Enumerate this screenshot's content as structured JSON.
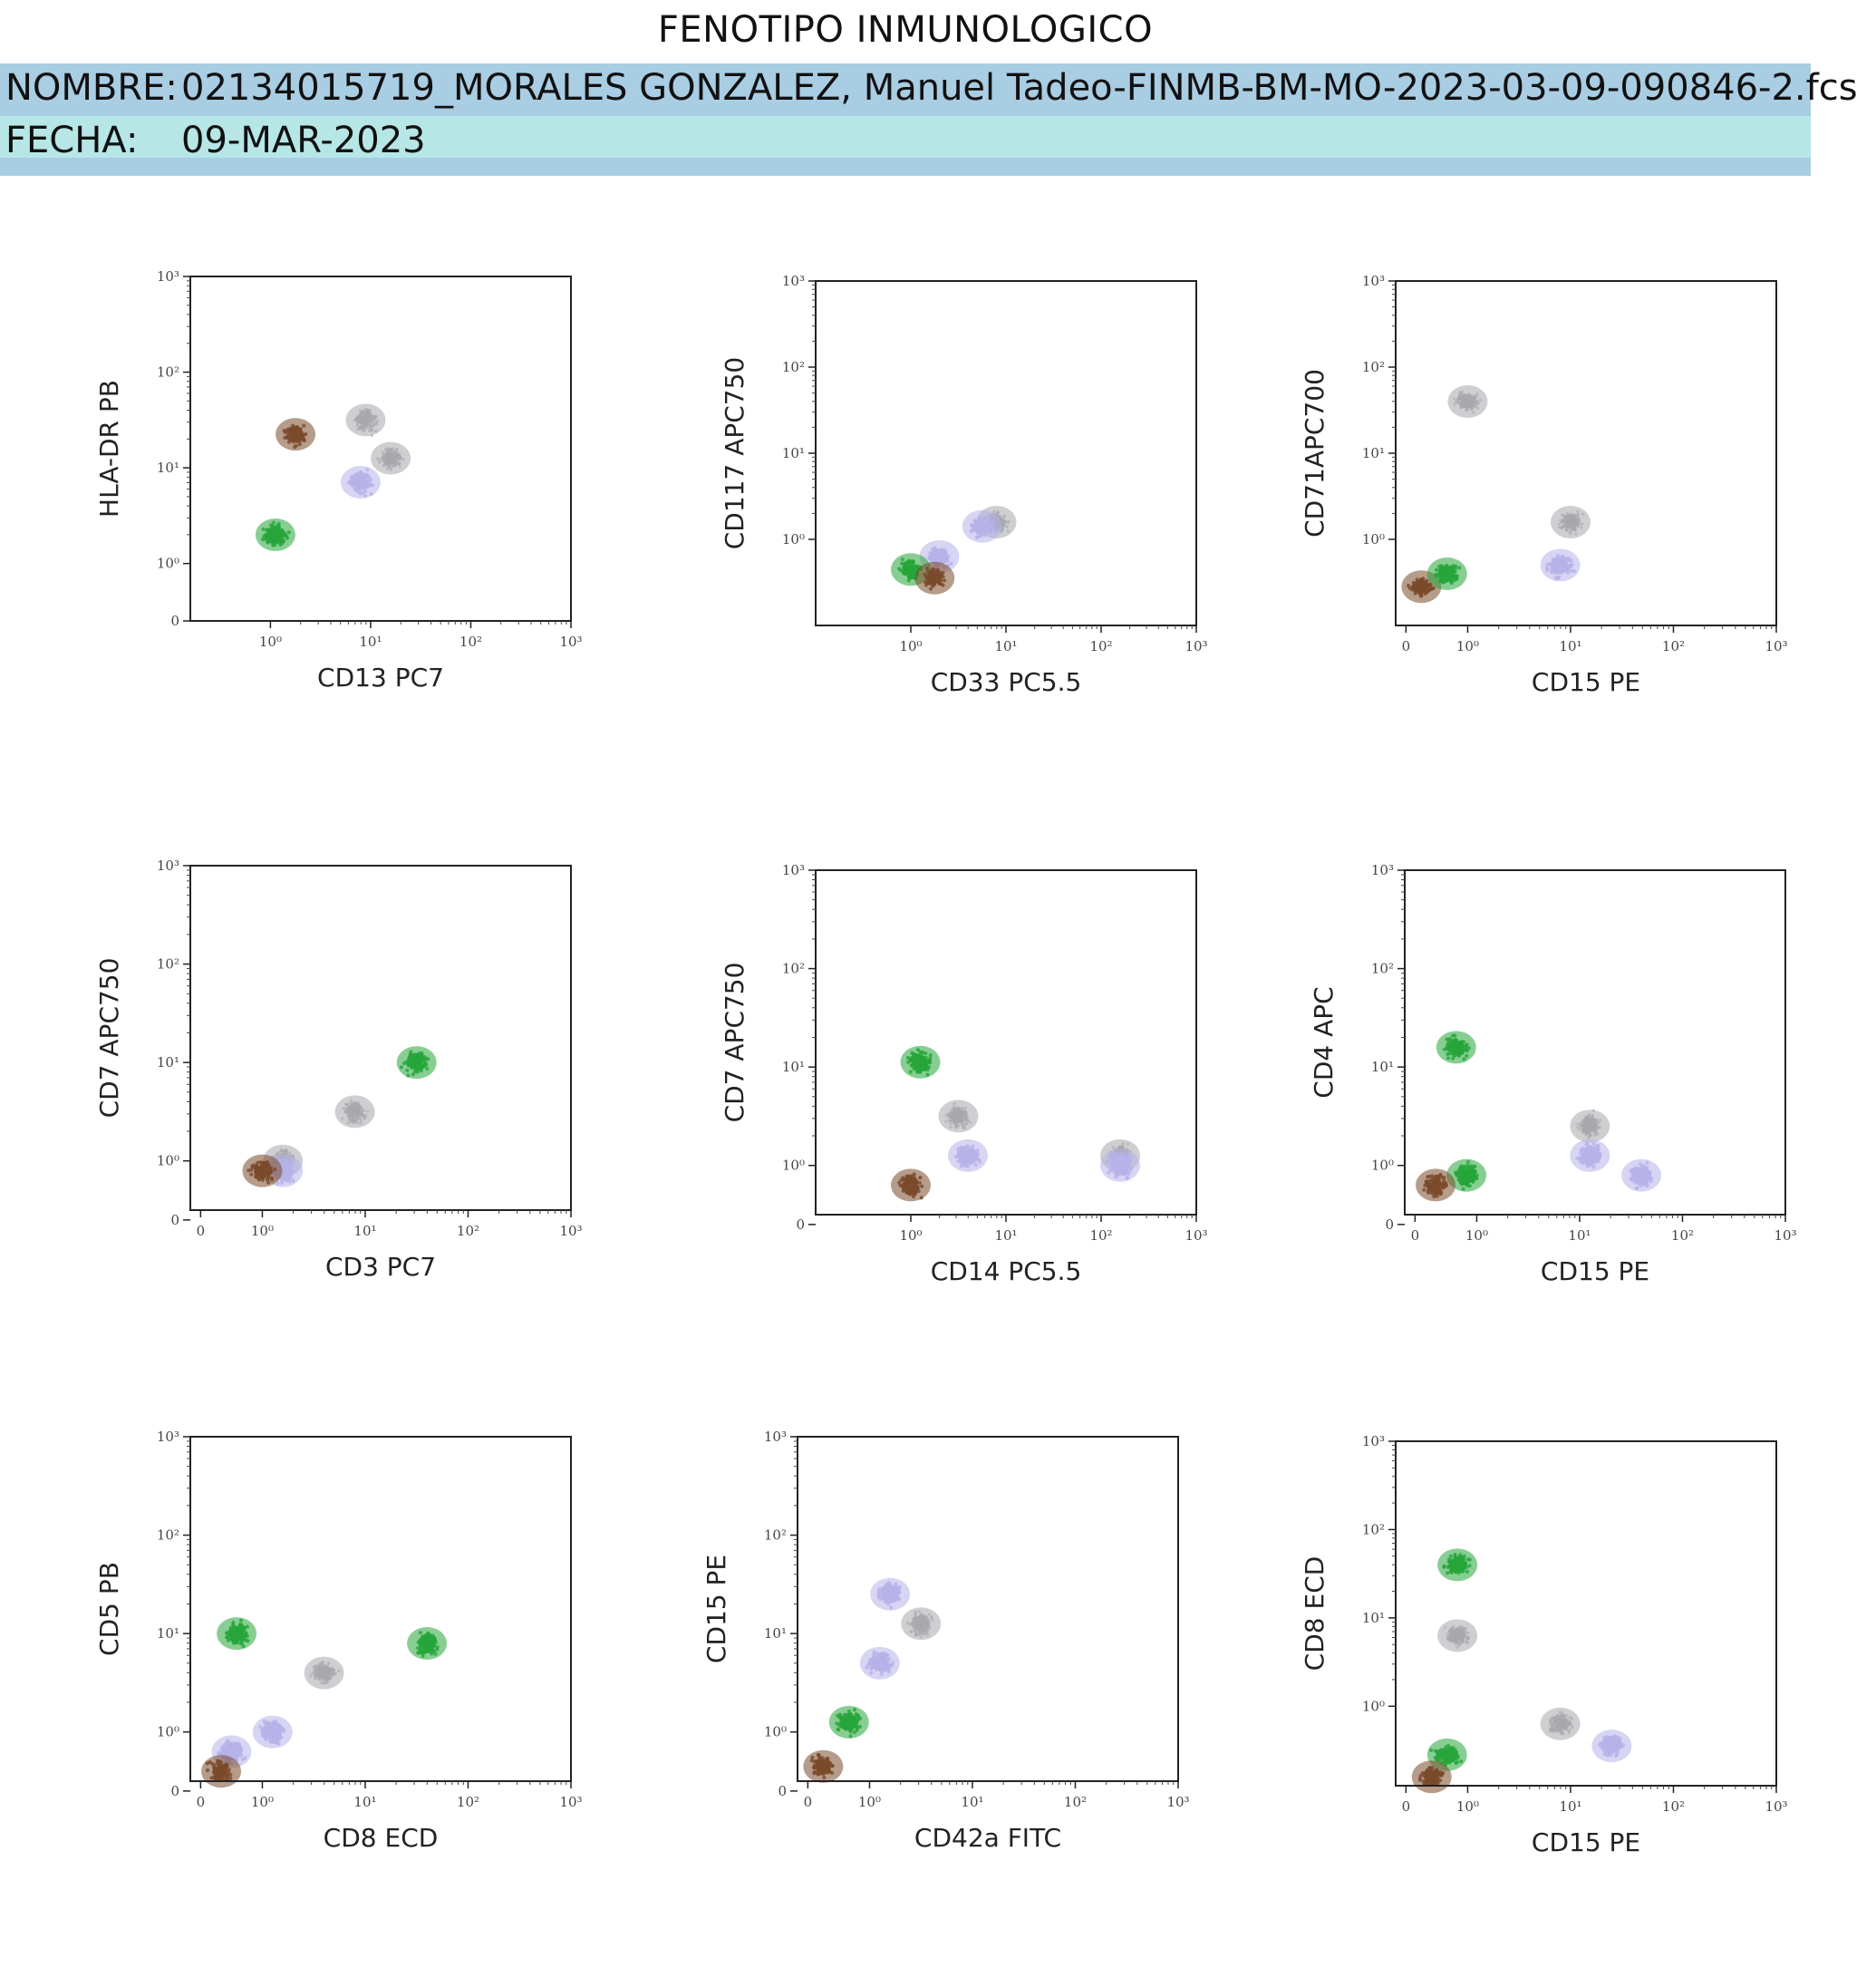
{
  "page": {
    "title": "FENOTIPO INMUNOLOGICO",
    "nombre_label": "NOMBRE:",
    "nombre_value": "02134015719_MORALES GONZALEZ, Manuel Tadeo-FINMB-BM-MO-2023-03-09-090846-2.fcs",
    "fecha_label": "FECHA:",
    "fecha_value": "09-MAR-2023"
  },
  "colors": {
    "gray": "#a8a8ad",
    "lavender": "#b6b3e9",
    "green": "#27a53a",
    "brown": "#7a4a2a",
    "header_blue": "#a9cde3",
    "header_cyan": "#b7e6e6"
  },
  "chart_data": [
    {
      "type": "scatter",
      "xlabel": "CD13 PC7",
      "ylabel": "HLA-DR PB",
      "xticks": [
        "10⁰",
        "10¹",
        "10²",
        "10³"
      ],
      "yticks": [
        "0",
        "10⁰",
        "10¹",
        "10²",
        "10³"
      ],
      "xlim": [
        -0.8,
        3
      ],
      "ylim": [
        -0.6,
        3
      ],
      "series": [
        {
          "color": "gray",
          "points": [
            [
              0.95,
              1.5
            ],
            [
              1.2,
              1.1
            ]
          ]
        },
        {
          "color": "lavender",
          "points": [
            [
              0.9,
              0.85
            ]
          ]
        },
        {
          "color": "brown",
          "points": [
            [
              0.25,
              1.35
            ]
          ]
        },
        {
          "color": "green",
          "points": [
            [
              0.05,
              0.3
            ]
          ]
        }
      ]
    },
    {
      "type": "scatter",
      "xlabel": "CD33 PC5.5",
      "ylabel": "CD117 APC750",
      "xticks": [
        "10⁰",
        "10¹",
        "10²",
        "10³"
      ],
      "yticks": [
        "10⁰",
        "10¹",
        "10²",
        "10³"
      ],
      "xlim": [
        -1,
        3
      ],
      "ylim": [
        -1,
        3
      ],
      "series": [
        {
          "color": "gray",
          "points": [
            [
              0.9,
              0.2
            ]
          ]
        },
        {
          "color": "lavender",
          "points": [
            [
              0.75,
              0.15
            ],
            [
              0.3,
              -0.2
            ]
          ]
        },
        {
          "color": "green",
          "points": [
            [
              0.0,
              -0.35
            ]
          ]
        },
        {
          "color": "brown",
          "points": [
            [
              0.25,
              -0.45
            ]
          ]
        }
      ]
    },
    {
      "type": "scatter",
      "xlabel": "CD15 PE",
      "ylabel": "CD71APC700",
      "xticks": [
        "0",
        "10⁰",
        "10¹",
        "10²",
        "10³"
      ],
      "yticks": [
        "10⁰",
        "10¹",
        "10²",
        "10³"
      ],
      "xlim": [
        -0.7,
        3
      ],
      "ylim": [
        -1,
        3
      ],
      "series": [
        {
          "color": "gray",
          "points": [
            [
              0.0,
              1.6
            ],
            [
              1.0,
              0.2
            ]
          ]
        },
        {
          "color": "lavender",
          "points": [
            [
              0.9,
              -0.3
            ]
          ]
        },
        {
          "color": "brown",
          "points": [
            [
              -0.45,
              -0.55
            ]
          ]
        },
        {
          "color": "green",
          "points": [
            [
              -0.2,
              -0.4
            ]
          ]
        }
      ]
    },
    {
      "type": "scatter",
      "xlabel": "CD3 PC7",
      "ylabel": "CD7 APC750",
      "xticks": [
        "0",
        "10⁰",
        "10¹",
        "10²",
        "10³"
      ],
      "yticks": [
        "0",
        "10⁰",
        "10¹",
        "10²",
        "10³"
      ],
      "xlim": [
        -0.7,
        3
      ],
      "ylim": [
        -0.5,
        3
      ],
      "series": [
        {
          "color": "gray",
          "points": [
            [
              0.2,
              0.0
            ],
            [
              0.9,
              0.5
            ]
          ]
        },
        {
          "color": "lavender",
          "points": [
            [
              0.2,
              -0.1
            ]
          ]
        },
        {
          "color": "brown",
          "points": [
            [
              0.0,
              -0.1
            ]
          ]
        },
        {
          "color": "green",
          "points": [
            [
              1.5,
              1.0
            ]
          ]
        }
      ]
    },
    {
      "type": "scatter",
      "xlabel": "CD14 PC5.5",
      "ylabel": "CD7 APC750",
      "xticks": [
        "10⁰",
        "10¹",
        "10²",
        "10³"
      ],
      "yticks": [
        "0",
        "10⁰",
        "10¹",
        "10²",
        "10³"
      ],
      "xlim": [
        -1,
        3
      ],
      "ylim": [
        -0.5,
        3
      ],
      "series": [
        {
          "color": "gray",
          "points": [
            [
              0.5,
              0.5
            ],
            [
              2.2,
              0.1
            ]
          ]
        },
        {
          "color": "lavender",
          "points": [
            [
              0.6,
              0.1
            ],
            [
              2.2,
              0.0
            ]
          ]
        },
        {
          "color": "green",
          "points": [
            [
              0.1,
              1.05
            ]
          ]
        },
        {
          "color": "brown",
          "points": [
            [
              0.0,
              -0.2
            ]
          ]
        }
      ]
    },
    {
      "type": "scatter",
      "xlabel": "CD15 PE",
      "ylabel": "CD4 APC",
      "xticks": [
        "0",
        "10⁰",
        "10¹",
        "10²",
        "10³"
      ],
      "yticks": [
        "0",
        "10⁰",
        "10¹",
        "10²",
        "10³"
      ],
      "xlim": [
        -0.7,
        3
      ],
      "ylim": [
        -0.5,
        3
      ],
      "series": [
        {
          "color": "gray",
          "points": [
            [
              1.1,
              0.4
            ]
          ]
        },
        {
          "color": "lavender",
          "points": [
            [
              1.1,
              0.1
            ],
            [
              1.6,
              -0.1
            ]
          ]
        },
        {
          "color": "green",
          "points": [
            [
              -0.2,
              1.2
            ],
            [
              -0.1,
              -0.1
            ]
          ]
        },
        {
          "color": "brown",
          "points": [
            [
              -0.4,
              -0.2
            ]
          ]
        }
      ]
    },
    {
      "type": "scatter",
      "xlabel": "CD8 ECD",
      "ylabel": "CD5 PB",
      "xticks": [
        "0",
        "10⁰",
        "10¹",
        "10²",
        "10³"
      ],
      "yticks": [
        "0",
        "10⁰",
        "10¹",
        "10²",
        "10³"
      ],
      "xlim": [
        -0.7,
        3
      ],
      "ylim": [
        -0.5,
        3
      ],
      "series": [
        {
          "color": "gray",
          "points": [
            [
              0.6,
              0.6
            ]
          ]
        },
        {
          "color": "lavender",
          "points": [
            [
              -0.3,
              -0.2
            ],
            [
              0.1,
              0.0
            ]
          ]
        },
        {
          "color": "green",
          "points": [
            [
              -0.25,
              1.0
            ],
            [
              1.6,
              0.9
            ]
          ]
        },
        {
          "color": "brown",
          "points": [
            [
              -0.4,
              -0.4
            ]
          ]
        }
      ]
    },
    {
      "type": "scatter",
      "xlabel": "CD42a FITC",
      "ylabel": "CD15 PE",
      "xticks": [
        "0",
        "10⁰",
        "10¹",
        "10²",
        "10³"
      ],
      "yticks": [
        "0",
        "10⁰",
        "10¹",
        "10²",
        "10³"
      ],
      "xlim": [
        -0.7,
        3
      ],
      "ylim": [
        -0.5,
        3
      ],
      "series": [
        {
          "color": "gray",
          "points": [
            [
              0.5,
              1.1
            ]
          ]
        },
        {
          "color": "lavender",
          "points": [
            [
              0.2,
              1.4
            ],
            [
              0.1,
              0.7
            ]
          ]
        },
        {
          "color": "green",
          "points": [
            [
              -0.2,
              0.1
            ]
          ]
        },
        {
          "color": "brown",
          "points": [
            [
              -0.45,
              -0.35
            ]
          ]
        }
      ]
    },
    {
      "type": "scatter",
      "xlabel": "CD15 PE",
      "ylabel": "CD8 ECD",
      "xticks": [
        "0",
        "10⁰",
        "10¹",
        "10²",
        "10³"
      ],
      "yticks": [
        "10⁰",
        "10¹",
        "10²",
        "10³"
      ],
      "xlim": [
        -0.7,
        3
      ],
      "ylim": [
        -0.9,
        3
      ],
      "series": [
        {
          "color": "gray",
          "points": [
            [
              0.9,
              -0.2
            ],
            [
              -0.1,
              0.8
            ]
          ]
        },
        {
          "color": "lavender",
          "points": [
            [
              1.4,
              -0.45
            ]
          ]
        },
        {
          "color": "green",
          "points": [
            [
              -0.1,
              1.6
            ],
            [
              -0.2,
              -0.55
            ]
          ]
        },
        {
          "color": "brown",
          "points": [
            [
              -0.35,
              -0.8
            ]
          ]
        }
      ]
    }
  ]
}
